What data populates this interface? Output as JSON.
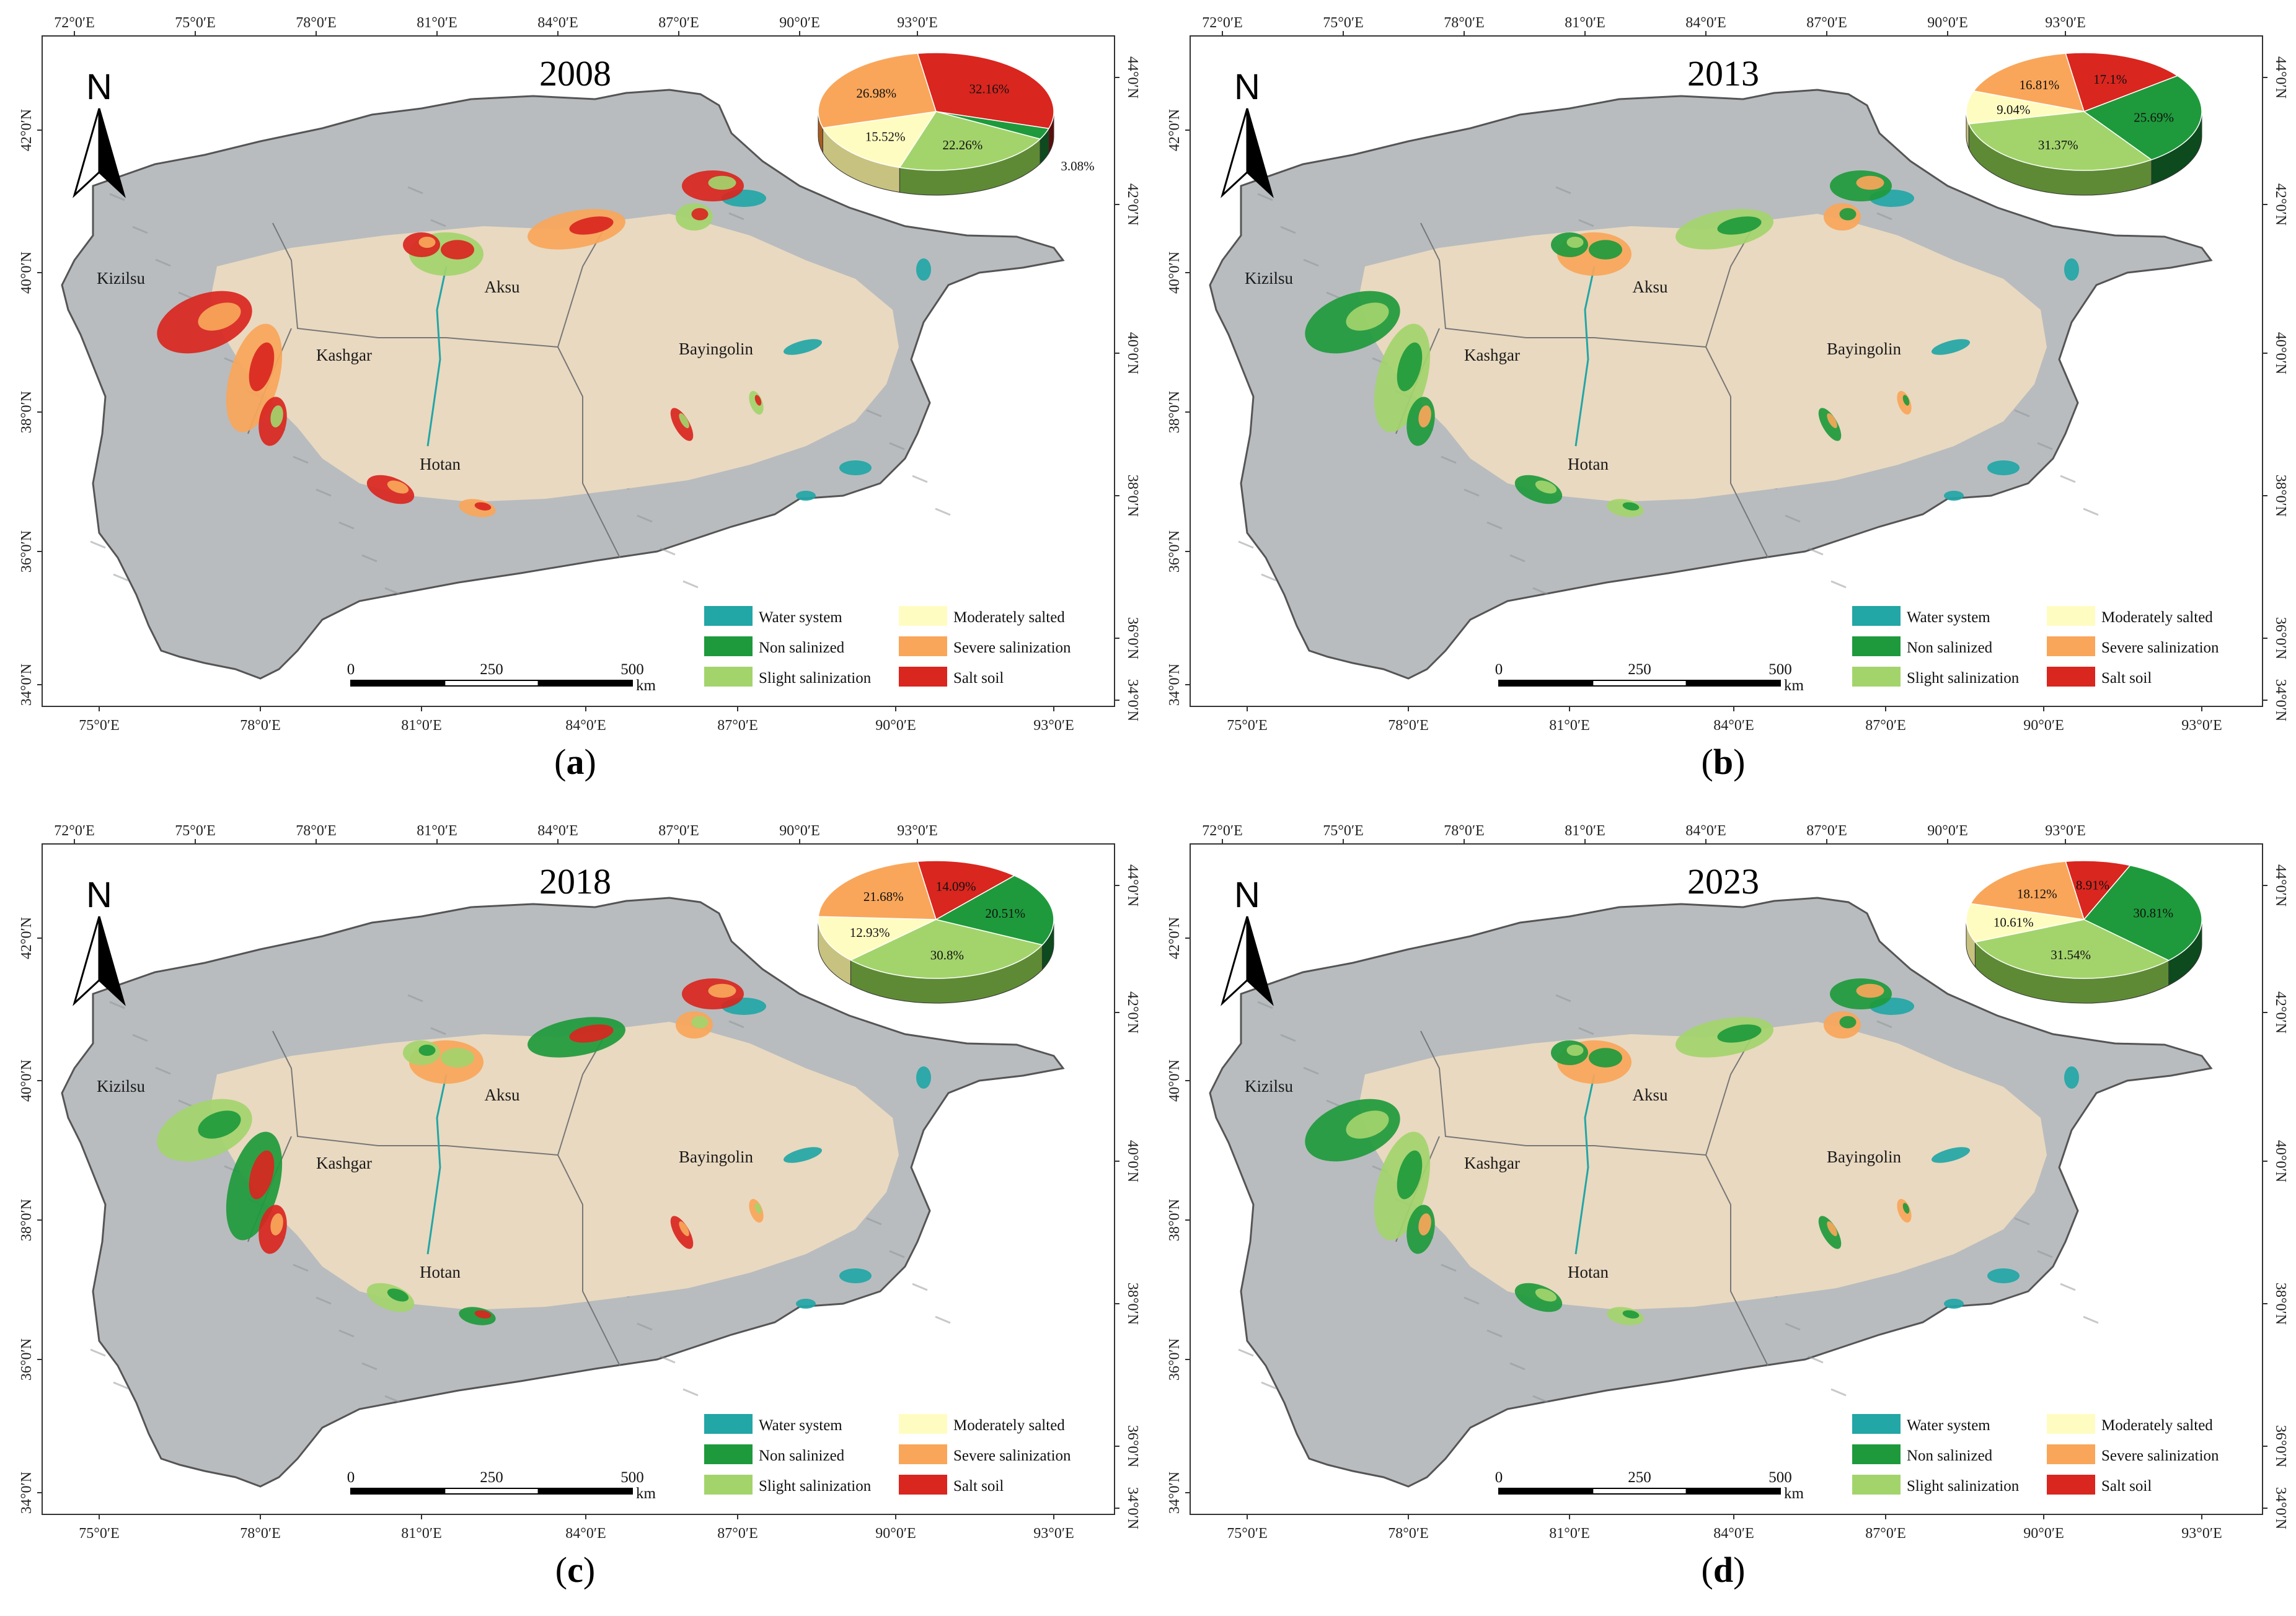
{
  "panels": [
    {
      "id": "a",
      "caption": "a",
      "year": "2008",
      "pie": [
        {
          "label": "32.16%",
          "value": 32.16,
          "color": "#d9261f",
          "shade": "#5a0e0b"
        },
        {
          "label": "3.08%",
          "value": 3.08,
          "color": "#1e9a3c",
          "shade": "#0d4a1d"
        },
        {
          "label": "22.26%",
          "value": 22.26,
          "color": "#a3d46c",
          "shade": "#5e8a35"
        },
        {
          "label": "15.52%",
          "value": 15.52,
          "color": "#fffcc2",
          "shade": "#c8c280"
        },
        {
          "label": "26.98%",
          "value": 26.98,
          "color": "#f9a65a",
          "shade": "#a85d22"
        }
      ],
      "theme": "red-orange"
    },
    {
      "id": "b",
      "caption": "b",
      "year": "2013",
      "pie": [
        {
          "label": "17.1%",
          "value": 17.1,
          "color": "#d9261f",
          "shade": "#5a0e0b"
        },
        {
          "label": "25.69%",
          "value": 25.69,
          "color": "#1e9a3c",
          "shade": "#0d4a1d"
        },
        {
          "label": "31.37%",
          "value": 31.37,
          "color": "#a3d46c",
          "shade": "#5e8a35"
        },
        {
          "label": "9.04%",
          "value": 9.04,
          "color": "#fffcc2",
          "shade": "#c8c280"
        },
        {
          "label": "16.81%",
          "value": 16.81,
          "color": "#f9a65a",
          "shade": "#a85d22"
        }
      ],
      "theme": "green"
    },
    {
      "id": "c",
      "caption": "c",
      "year": "2018",
      "pie": [
        {
          "label": "14.09%",
          "value": 14.09,
          "color": "#d9261f",
          "shade": "#5a0e0b"
        },
        {
          "label": "20.51%",
          "value": 20.51,
          "color": "#1e9a3c",
          "shade": "#0d4a1d"
        },
        {
          "label": "30.8%",
          "value": 30.8,
          "color": "#a3d46c",
          "shade": "#5e8a35"
        },
        {
          "label": "12.93%",
          "value": 12.93,
          "color": "#fffcc2",
          "shade": "#c8c280"
        },
        {
          "label": "21.68%",
          "value": 21.68,
          "color": "#f9a65a",
          "shade": "#a85d22"
        }
      ],
      "theme": "mixed"
    },
    {
      "id": "d",
      "caption": "d",
      "year": "2023",
      "pie": [
        {
          "label": "8.91%",
          "value": 8.91,
          "color": "#d9261f",
          "shade": "#5a0e0b"
        },
        {
          "label": "30.81%",
          "value": 30.81,
          "color": "#1e9a3c",
          "shade": "#0d4a1d"
        },
        {
          "label": "31.54%",
          "value": 31.54,
          "color": "#a3d46c",
          "shade": "#5e8a35"
        },
        {
          "label": "10.61%",
          "value": 10.61,
          "color": "#fffcc2",
          "shade": "#c8c280"
        },
        {
          "label": "18.12%",
          "value": 18.12,
          "color": "#f9a65a",
          "shade": "#a85d22"
        }
      ],
      "theme": "green"
    }
  ],
  "cities": [
    "Kizilsu",
    "Aksu",
    "Kashgar",
    "Bayingolin",
    "Hotan"
  ],
  "legend": [
    {
      "label": "Water system",
      "color": "#22a6a6"
    },
    {
      "label": "Moderately salted",
      "color": "#fffcc2"
    },
    {
      "label": "Non salinized",
      "color": "#1e9a3c"
    },
    {
      "label": "Severe salinization",
      "color": "#f9a65a"
    },
    {
      "label": "Slight salinization",
      "color": "#a3d46c"
    },
    {
      "label": "Salt soil",
      "color": "#d9261f"
    }
  ],
  "north_label": "N",
  "scale_bar": {
    "labels": [
      "0",
      "250",
      "500"
    ],
    "unit": "km"
  },
  "top_lon": [
    "72°0′E",
    "75°0′E",
    "78°0′E",
    "81°0′E",
    "84°0′E",
    "87°0′E",
    "90°0′E",
    "93°0′E"
  ],
  "bottom_lon": [
    "75°0′E",
    "78°0′E",
    "81°0′E",
    "84°0′E",
    "87°0′E",
    "90°0′E",
    "93°0′E"
  ],
  "left_lat": [
    "42°0′N",
    "40°0′N",
    "38°0′N",
    "36°0′N",
    "34°0′N"
  ],
  "right_lat": [
    "44°0′N",
    "42°0′N",
    "40°0′N",
    "38°0′N",
    "36°0′N",
    "34°0′N"
  ],
  "colors": {
    "desert": "#e9d9c0",
    "mountain": "#b8bcbf",
    "frame": "#333333",
    "water": "#22a6a6"
  }
}
